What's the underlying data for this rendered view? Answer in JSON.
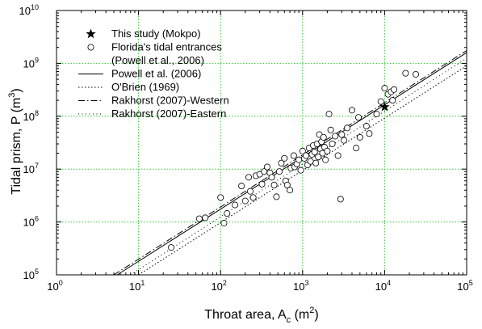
{
  "chart_data": {
    "type": "scatter",
    "x_scale": "log",
    "y_scale": "log",
    "xlim": [
      1,
      100000
    ],
    "ylim": [
      100000,
      10000000000
    ],
    "grid": true,
    "grid_color": "#33cc33",
    "legend_position": "top-left",
    "x_ticks": [
      {
        "base": "10",
        "exp": "0",
        "value": 1
      },
      {
        "base": "10",
        "exp": "1",
        "value": 10
      },
      {
        "base": "10",
        "exp": "2",
        "value": 100
      },
      {
        "base": "10",
        "exp": "3",
        "value": 1000
      },
      {
        "base": "10",
        "exp": "4",
        "value": 10000
      },
      {
        "base": "10",
        "exp": "5",
        "value": 100000
      }
    ],
    "y_ticks": [
      {
        "base": "10",
        "exp": "5",
        "value": 100000
      },
      {
        "base": "10",
        "exp": "6",
        "value": 1000000
      },
      {
        "base": "10",
        "exp": "7",
        "value": 10000000
      },
      {
        "base": "10",
        "exp": "8",
        "value": 100000000
      },
      {
        "base": "10",
        "exp": "9",
        "value": 1000000000
      },
      {
        "base": "10",
        "exp": "10",
        "value": 10000000000
      }
    ],
    "xlabel": {
      "main": "Throat area, A",
      "sub": "c",
      "unit_open": " (m",
      "unit_sup": "2",
      "unit_close": ")"
    },
    "ylabel": {
      "main": "Tidal prism, P (m",
      "sup": "3",
      "close": ")"
    },
    "legend": [
      {
        "label": "This study (Mokpo)",
        "marker": "star"
      },
      {
        "label": "Florida's tidal entrances",
        "label2": "(Powell et al., 2006)",
        "marker": "circle"
      },
      {
        "label": "Powell et al. (2006)",
        "line": "solid"
      },
      {
        "label": "O'Brien (1969)",
        "line": "dotted"
      },
      {
        "label": "Rakhorst (2007)-Western",
        "line": "dashdot"
      },
      {
        "label": "Rakhorst (2007)-Eastern",
        "line": "shortdot"
      }
    ],
    "series": [
      {
        "name": "This study (Mokpo)",
        "kind": "scatter",
        "marker": "star",
        "points": [
          [
            10000,
            150000000
          ]
        ]
      },
      {
        "name": "Florida's tidal entrances",
        "kind": "scatter",
        "marker": "circle",
        "points": [
          [
            25,
            330000
          ],
          [
            55,
            1150000
          ],
          [
            65,
            1200000
          ],
          [
            100,
            2900000
          ],
          [
            110,
            950000
          ],
          [
            120,
            1450000
          ],
          [
            150,
            2100000
          ],
          [
            180,
            4800000
          ],
          [
            200,
            2500000
          ],
          [
            220,
            7000000
          ],
          [
            230,
            3800000
          ],
          [
            250,
            2900000
          ],
          [
            270,
            7500000
          ],
          [
            300,
            8000000
          ],
          [
            320,
            5200000
          ],
          [
            340,
            9000000
          ],
          [
            370,
            11000000
          ],
          [
            400,
            8500000
          ],
          [
            420,
            7000000
          ],
          [
            450,
            5000000
          ],
          [
            480,
            3000000
          ],
          [
            520,
            9000000
          ],
          [
            550,
            13000000
          ],
          [
            600,
            16000000
          ],
          [
            620,
            6000000
          ],
          [
            650,
            5000000
          ],
          [
            700,
            4000000
          ],
          [
            720,
            10500000
          ],
          [
            780,
            18000000
          ],
          [
            800,
            11000000
          ],
          [
            850,
            12500000
          ],
          [
            900,
            15000000
          ],
          [
            950,
            9500000
          ],
          [
            1000,
            22000000
          ],
          [
            1050,
            16000000
          ],
          [
            1100,
            18000000
          ],
          [
            1150,
            12000000
          ],
          [
            1200,
            25000000
          ],
          [
            1250,
            14000000
          ],
          [
            1300,
            19000000
          ],
          [
            1350,
            28000000
          ],
          [
            1400,
            21000000
          ],
          [
            1450,
            13000000
          ],
          [
            1500,
            30000000
          ],
          [
            1550,
            17000000
          ],
          [
            1600,
            45000000
          ],
          [
            1650,
            24000000
          ],
          [
            1700,
            33000000
          ],
          [
            1750,
            20000000
          ],
          [
            1800,
            40000000
          ],
          [
            1850,
            26000000
          ],
          [
            1900,
            15000000
          ],
          [
            2000,
            22000000
          ],
          [
            2100,
            110000000
          ],
          [
            2200,
            55000000
          ],
          [
            2300,
            30000000
          ],
          [
            2500,
            42000000
          ],
          [
            2700,
            18000000
          ],
          [
            2900,
            2700000
          ],
          [
            3000,
            45000000
          ],
          [
            3200,
            35000000
          ],
          [
            3500,
            60000000
          ],
          [
            4000,
            130000000
          ],
          [
            4500,
            25000000
          ],
          [
            4800,
            95000000
          ],
          [
            5000,
            40000000
          ],
          [
            6000,
            65000000
          ],
          [
            6500,
            47000000
          ],
          [
            8000,
            110000000
          ],
          [
            9000,
            190000000
          ],
          [
            10000,
            340000000
          ],
          [
            11000,
            260000000
          ],
          [
            12000,
            290000000
          ],
          [
            12500,
            200000000
          ],
          [
            13000,
            320000000
          ],
          [
            18000,
            650000000
          ],
          [
            24000,
            620000000
          ]
        ]
      },
      {
        "name": "Powell et al. (2006)",
        "kind": "line",
        "style": "solid",
        "points": [
          [
            5.5,
            100000
          ],
          [
            100000,
            1600000000
          ]
        ]
      },
      {
        "name": "O'Brien (1969)",
        "kind": "line",
        "style": "dotted",
        "points": [
          [
            10,
            100000
          ],
          [
            100000,
            900000000
          ]
        ]
      },
      {
        "name": "Rakhorst (2007)-Western",
        "kind": "line",
        "style": "dashdot",
        "points": [
          [
            5,
            100000
          ],
          [
            100000,
            1750000000
          ]
        ]
      },
      {
        "name": "Rakhorst (2007)-Eastern",
        "kind": "line",
        "style": "shortdot",
        "points": [
          [
            8,
            100000
          ],
          [
            100000,
            1250000000
          ]
        ]
      }
    ]
  }
}
